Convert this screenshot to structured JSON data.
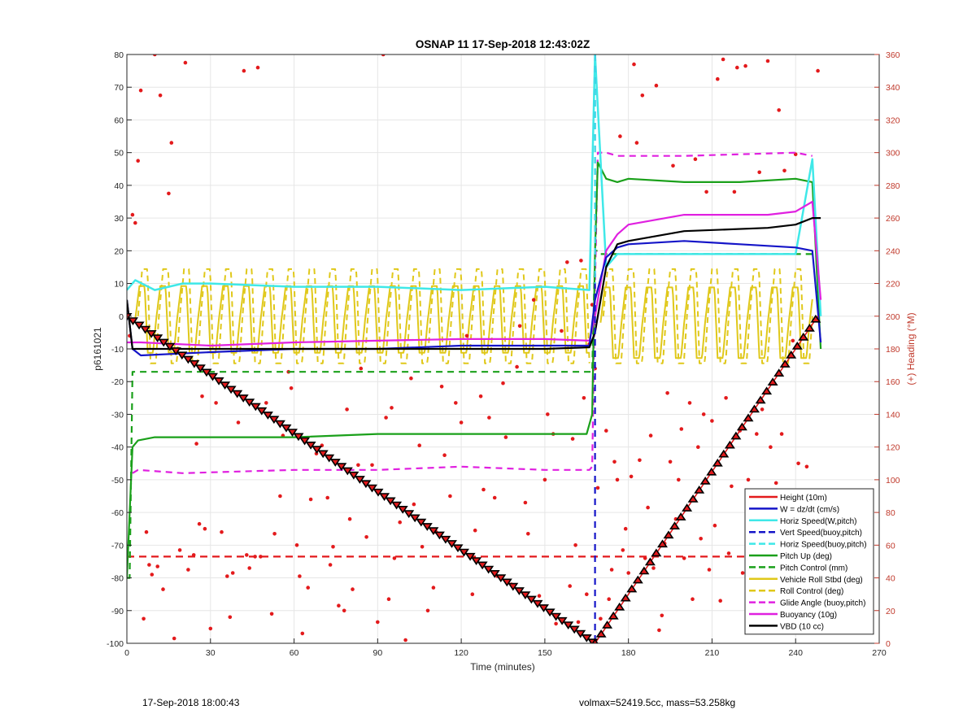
{
  "chart_data": {
    "type": "line",
    "title": "OSNAP 11 17-Sep-2018 12:43:02Z",
    "xlabel": "Time (minutes)",
    "ylabel_left": "p6161021",
    "ylabel_right": "(+) Heading (°M)",
    "xlim": [
      0,
      270
    ],
    "ylim_left": [
      -100,
      80
    ],
    "ylim_right": [
      0,
      360
    ],
    "x_ticks": [
      0,
      30,
      60,
      90,
      120,
      150,
      180,
      210,
      240,
      270
    ],
    "y_ticks_left": [
      80,
      70,
      60,
      50,
      40,
      30,
      20,
      10,
      0,
      -10,
      -20,
      -30,
      -40,
      -50,
      -60,
      -70,
      -80,
      -90,
      -100
    ],
    "y_ticks_right": [
      360,
      340,
      320,
      300,
      280,
      260,
      240,
      220,
      200,
      180,
      160,
      140,
      120,
      100,
      80,
      60,
      40,
      20,
      0
    ],
    "grid": true,
    "legend_position": "bottom-right",
    "colors": {
      "red": "#e31a1c",
      "blue": "#1515c8",
      "cyan": "#3fe8e8",
      "green": "#1aa01a",
      "yellow": "#e0c81a",
      "magenta": "#e020e0",
      "black": "#000000",
      "heading_axis": "#c0392b"
    },
    "series": [
      {
        "name": "Height (10m)",
        "color": "red",
        "dash": false
      },
      {
        "name": "W = dz/dt (cm/s)",
        "color": "blue",
        "dash": false
      },
      {
        "name": "Horiz Speed(W,pitch)",
        "color": "cyan",
        "dash": false
      },
      {
        "name": "Vert Speed(buoy,pitch)",
        "color": "blue",
        "dash": true
      },
      {
        "name": "Horiz Speed(buoy,pitch)",
        "color": "cyan",
        "dash": true
      },
      {
        "name": "Pitch Up (deg)",
        "color": "green",
        "dash": false
      },
      {
        "name": "Pitch Control (mm)",
        "color": "green",
        "dash": true
      },
      {
        "name": "Vehicle Roll Stbd (deg)",
        "color": "yellow",
        "dash": false
      },
      {
        "name": "Roll Control (deg)",
        "color": "yellow",
        "dash": true
      },
      {
        "name": "Glide Angle (buoy,pitch)",
        "color": "magenta",
        "dash": true
      },
      {
        "name": "Buoyancy (10g)",
        "color": "magenta",
        "dash": false
      },
      {
        "name": "VBD (10 cc)",
        "color": "black",
        "dash": false
      }
    ],
    "traces": {
      "depth_profile": {
        "x": [
          0,
          168,
          248
        ],
        "y": [
          0,
          -100,
          0
        ]
      },
      "w_speed": {
        "x": [
          0,
          2,
          5,
          30,
          60,
          90,
          120,
          150,
          166,
          168,
          172,
          176,
          180,
          200,
          220,
          240,
          246,
          249
        ],
        "y": [
          5,
          -10,
          -12,
          -11,
          -10,
          -10,
          -9,
          -9,
          -9,
          5,
          18,
          21,
          22,
          23,
          22,
          21,
          20,
          -8
        ]
      },
      "horiz_speed_w": {
        "x": [
          0,
          3,
          10,
          20,
          30,
          60,
          90,
          120,
          150,
          166,
          168,
          172,
          176,
          200,
          240,
          246,
          249
        ],
        "y": [
          8,
          11,
          8,
          10,
          10,
          9,
          9,
          8,
          9,
          8,
          80,
          15,
          19,
          19,
          19,
          48,
          0
        ]
      },
      "pitch_up": {
        "x": [
          0,
          2,
          4,
          10,
          30,
          60,
          90,
          120,
          150,
          165,
          167,
          168,
          169,
          172,
          176,
          180,
          200,
          220,
          240,
          246,
          249
        ],
        "y": [
          -80,
          -40,
          -38,
          -37,
          -37,
          -37,
          -36,
          -36,
          -36,
          -36,
          -30,
          20,
          47,
          42,
          41,
          42,
          41,
          41,
          42,
          41,
          -10
        ]
      },
      "pitch_control": {
        "x": [
          0,
          1,
          2,
          166,
          167,
          168,
          169,
          170,
          172,
          248
        ],
        "y": [
          -80,
          -80,
          -17,
          -17,
          -17,
          20,
          20,
          19,
          19,
          19
        ]
      },
      "glide_angle": {
        "x": [
          2,
          4,
          20,
          60,
          90,
          120,
          150,
          166,
          167,
          168,
          169,
          172,
          176,
          200,
          240,
          246
        ],
        "y": [
          -48,
          -47,
          -48,
          -47,
          -47,
          -46,
          -47,
          -47,
          -46,
          10,
          50,
          50,
          49,
          49,
          50,
          49
        ]
      },
      "buoyancy": {
        "x": [
          0,
          2,
          5,
          30,
          60,
          90,
          120,
          150,
          166,
          168,
          172,
          176,
          180,
          200,
          230,
          240,
          246,
          249
        ],
        "y": [
          -8,
          -8,
          -8,
          -9,
          -8,
          -7.5,
          -7,
          -7,
          -7.5,
          0,
          20,
          25,
          28,
          31,
          31,
          32,
          35,
          5
        ]
      },
      "vbd": {
        "x": [
          0,
          2,
          5,
          30,
          60,
          90,
          120,
          150,
          166,
          168,
          172,
          176,
          180,
          200,
          230,
          240,
          246,
          249
        ],
        "y": [
          5,
          -10,
          -10,
          -10,
          -10,
          -10,
          -10,
          -10,
          -9.5,
          -5,
          15,
          22,
          23,
          26,
          27,
          28,
          30,
          30
        ]
      },
      "vert_speed_buoy": {
        "x": [
          168,
          168
        ],
        "y": [
          80,
          -100
        ]
      },
      "height": {
        "x": [
          0,
          248
        ],
        "y": [
          -73.5,
          -73.5
        ]
      },
      "roll_cycle_period_min": 7.5,
      "roll_amplitude_deg": 12
    },
    "heading_points_deg": [
      [
        1,
        188
      ],
      [
        2,
        262
      ],
      [
        3,
        257
      ],
      [
        4,
        295
      ],
      [
        5,
        338
      ],
      [
        6,
        15
      ],
      [
        7,
        68
      ],
      [
        8,
        48
      ],
      [
        9,
        42
      ],
      [
        10,
        360
      ],
      [
        11,
        47
      ],
      [
        12,
        335
      ],
      [
        13,
        33
      ],
      [
        15,
        275
      ],
      [
        16,
        306
      ],
      [
        17,
        3
      ],
      [
        19,
        57
      ],
      [
        21,
        355
      ],
      [
        22,
        45
      ],
      [
        24,
        54
      ],
      [
        25,
        122
      ],
      [
        26,
        73
      ],
      [
        27,
        151
      ],
      [
        28,
        70
      ],
      [
        30,
        9
      ],
      [
        32,
        147
      ],
      [
        34,
        68
      ],
      [
        36,
        41
      ],
      [
        37,
        16
      ],
      [
        38,
        43
      ],
      [
        40,
        135
      ],
      [
        42,
        350
      ],
      [
        43,
        54
      ],
      [
        44,
        46
      ],
      [
        46,
        53
      ],
      [
        47,
        352
      ],
      [
        48,
        53
      ],
      [
        50,
        147
      ],
      [
        52,
        18
      ],
      [
        53,
        67
      ],
      [
        55,
        90
      ],
      [
        56,
        127
      ],
      [
        58,
        166
      ],
      [
        59,
        156
      ],
      [
        61,
        60
      ],
      [
        62,
        41
      ],
      [
        63,
        6
      ],
      [
        65,
        34
      ],
      [
        66,
        88
      ],
      [
        68,
        116
      ],
      [
        70,
        121
      ],
      [
        72,
        89
      ],
      [
        73,
        48
      ],
      [
        74,
        59
      ],
      [
        76,
        23
      ],
      [
        78,
        20
      ],
      [
        79,
        143
      ],
      [
        80,
        76
      ],
      [
        81,
        33
      ],
      [
        83,
        109
      ],
      [
        84,
        168
      ],
      [
        86,
        65
      ],
      [
        88,
        109
      ],
      [
        90,
        13
      ],
      [
        92,
        360
      ],
      [
        93,
        138
      ],
      [
        94,
        27
      ],
      [
        95,
        144
      ],
      [
        96,
        52
      ],
      [
        98,
        74
      ],
      [
        100,
        2
      ],
      [
        102,
        162
      ],
      [
        103,
        85
      ],
      [
        105,
        121
      ],
      [
        106,
        59
      ],
      [
        108,
        20
      ],
      [
        110,
        34
      ],
      [
        111,
        68
      ],
      [
        113,
        157
      ],
      [
        114,
        115
      ],
      [
        116,
        90
      ],
      [
        118,
        147
      ],
      [
        120,
        135
      ],
      [
        122,
        188
      ],
      [
        124,
        30
      ],
      [
        125,
        69
      ],
      [
        127,
        151
      ],
      [
        128,
        94
      ],
      [
        130,
        138
      ],
      [
        132,
        89
      ],
      [
        133,
        41
      ],
      [
        135,
        159
      ],
      [
        136,
        126
      ],
      [
        138,
        36
      ],
      [
        140,
        169
      ],
      [
        141,
        194
      ],
      [
        143,
        86
      ],
      [
        144,
        67
      ],
      [
        146,
        210
      ],
      [
        148,
        29
      ],
      [
        150,
        100
      ],
      [
        151,
        140
      ],
      [
        153,
        128
      ],
      [
        154,
        12
      ],
      [
        156,
        191
      ],
      [
        158,
        233
      ],
      [
        159,
        35
      ],
      [
        160,
        125
      ],
      [
        161,
        60
      ],
      [
        162,
        13
      ],
      [
        163,
        234
      ],
      [
        164,
        150
      ],
      [
        165,
        30
      ],
      [
        166,
        183
      ],
      [
        167,
        207
      ],
      [
        168,
        168
      ],
      [
        169,
        95
      ],
      [
        170,
        15
      ],
      [
        172,
        130
      ],
      [
        173,
        27
      ],
      [
        174,
        45
      ],
      [
        175,
        111
      ],
      [
        176,
        100
      ],
      [
        177,
        310
      ],
      [
        178,
        57
      ],
      [
        179,
        70
      ],
      [
        180,
        43
      ],
      [
        181,
        102
      ],
      [
        182,
        354
      ],
      [
        183,
        306
      ],
      [
        184,
        112
      ],
      [
        185,
        335
      ],
      [
        186,
        52
      ],
      [
        187,
        83
      ],
      [
        188,
        127
      ],
      [
        189,
        46
      ],
      [
        190,
        341
      ],
      [
        191,
        8
      ],
      [
        192,
        17
      ],
      [
        193,
        61
      ],
      [
        194,
        153
      ],
      [
        195,
        111
      ],
      [
        196,
        292
      ],
      [
        197,
        76
      ],
      [
        198,
        100
      ],
      [
        199,
        131
      ],
      [
        200,
        52
      ],
      [
        202,
        147
      ],
      [
        203,
        27
      ],
      [
        204,
        296
      ],
      [
        205,
        120
      ],
      [
        206,
        64
      ],
      [
        207,
        140
      ],
      [
        208,
        276
      ],
      [
        209,
        45
      ],
      [
        210,
        136
      ],
      [
        211,
        72
      ],
      [
        212,
        345
      ],
      [
        213,
        26
      ],
      [
        214,
        357
      ],
      [
        215,
        150
      ],
      [
        216,
        55
      ],
      [
        217,
        96
      ],
      [
        218,
        276
      ],
      [
        219,
        352
      ],
      [
        220,
        130
      ],
      [
        221,
        43
      ],
      [
        222,
        353
      ],
      [
        223,
        100
      ],
      [
        224,
        25
      ],
      [
        225,
        87
      ],
      [
        226,
        128
      ],
      [
        227,
        288
      ],
      [
        228,
        143
      ],
      [
        229,
        55
      ],
      [
        230,
        356
      ],
      [
        231,
        120
      ],
      [
        232,
        75
      ],
      [
        233,
        98
      ],
      [
        234,
        326
      ],
      [
        235,
        128
      ],
      [
        236,
        289
      ],
      [
        237,
        17
      ],
      [
        238,
        34
      ],
      [
        239,
        185
      ],
      [
        240,
        299
      ],
      [
        241,
        110
      ],
      [
        242,
        78
      ],
      [
        243,
        20
      ],
      [
        244,
        108
      ],
      [
        245,
        65
      ],
      [
        246,
        29
      ],
      [
        248,
        350
      ]
    ]
  },
  "footer": {
    "left": "17-Sep-2018 18:00:43",
    "right": "volmax=52419.5cc, mass=53.258kg"
  }
}
